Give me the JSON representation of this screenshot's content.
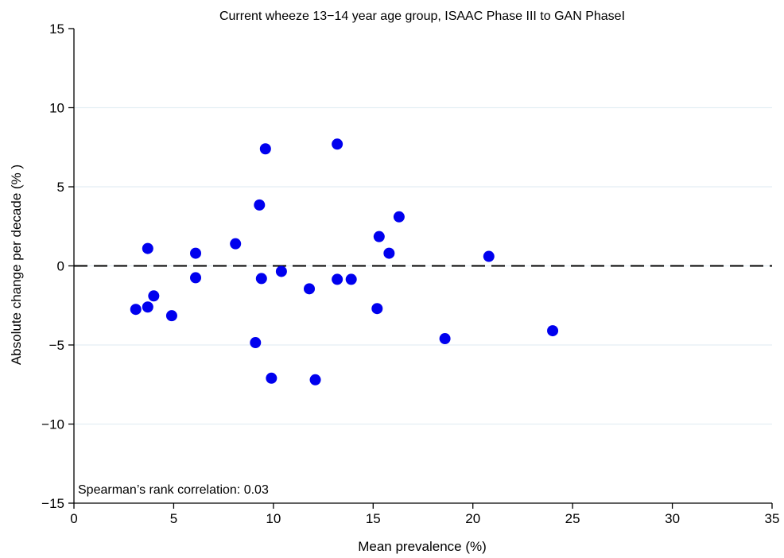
{
  "chart_data": {
    "type": "scatter",
    "title": "Current wheeze 13−14 year age group, ISAAC Phase III to GAN PhaseI",
    "xlabel": "Mean prevalence (%)",
    "ylabel": "Absolute change per decade (% )",
    "xlim": [
      0,
      35
    ],
    "ylim": [
      -15,
      15
    ],
    "x_ticks": [
      0,
      5,
      10,
      15,
      20,
      25,
      30,
      35
    ],
    "y_ticks": [
      -15,
      -10,
      -5,
      0,
      5,
      10,
      15
    ],
    "x_tick_labels": [
      "0",
      "5",
      "10",
      "15",
      "20",
      "25",
      "30",
      "35"
    ],
    "y_tick_labels": [
      "−15",
      "−10",
      "−5",
      "0",
      "5",
      "10",
      "15"
    ],
    "grid": "horizontal",
    "reference_line": {
      "y": 0,
      "style": "dashed"
    },
    "annotation": "Spearman’s rank correlation: 0.03",
    "point_color": "#0000ee",
    "points": [
      {
        "x": 3.1,
        "y": -2.75
      },
      {
        "x": 3.7,
        "y": -2.6
      },
      {
        "x": 3.7,
        "y": 1.1
      },
      {
        "x": 4.0,
        "y": -1.9
      },
      {
        "x": 4.9,
        "y": -3.15
      },
      {
        "x": 6.1,
        "y": 0.8
      },
      {
        "x": 6.1,
        "y": -0.75
      },
      {
        "x": 8.1,
        "y": 1.4
      },
      {
        "x": 9.1,
        "y": -4.85
      },
      {
        "x": 9.3,
        "y": 3.85
      },
      {
        "x": 9.4,
        "y": -0.8
      },
      {
        "x": 9.6,
        "y": 7.4
      },
      {
        "x": 9.9,
        "y": -7.1
      },
      {
        "x": 10.4,
        "y": -0.35
      },
      {
        "x": 11.8,
        "y": -1.45
      },
      {
        "x": 12.1,
        "y": -7.2
      },
      {
        "x": 13.2,
        "y": 7.7
      },
      {
        "x": 13.2,
        "y": -0.85
      },
      {
        "x": 13.9,
        "y": -0.85
      },
      {
        "x": 15.2,
        "y": -2.7
      },
      {
        "x": 15.3,
        "y": 1.85
      },
      {
        "x": 15.8,
        "y": 0.8
      },
      {
        "x": 16.3,
        "y": 3.1
      },
      {
        "x": 18.6,
        "y": -4.6
      },
      {
        "x": 20.8,
        "y": 0.6
      },
      {
        "x": 24.0,
        "y": -4.1
      }
    ]
  }
}
